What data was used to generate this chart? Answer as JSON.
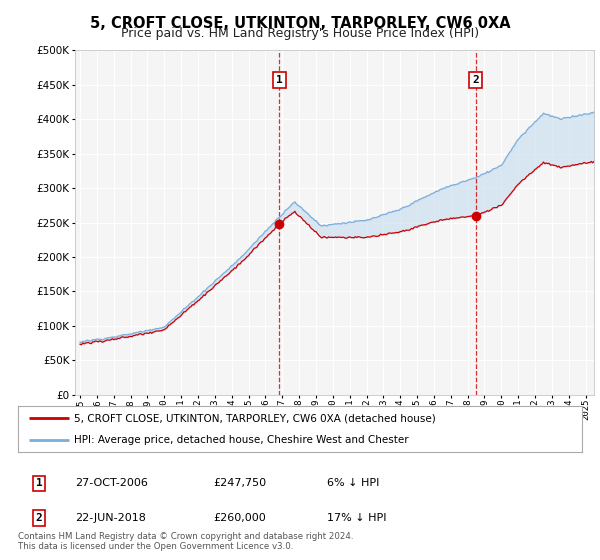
{
  "title": "5, CROFT CLOSE, UTKINTON, TARPORLEY, CW6 0XA",
  "subtitle": "Price paid vs. HM Land Registry's House Price Index (HPI)",
  "legend_line1": "5, CROFT CLOSE, UTKINTON, TARPORLEY, CW6 0XA (detached house)",
  "legend_line2": "HPI: Average price, detached house, Cheshire West and Chester",
  "annotation1_date": "27-OCT-2006",
  "annotation1_price": "£247,750",
  "annotation1_hpi": "6% ↓ HPI",
  "annotation2_date": "22-JUN-2018",
  "annotation2_price": "£260,000",
  "annotation2_hpi": "17% ↓ HPI",
  "footnote": "Contains HM Land Registry data © Crown copyright and database right 2024.\nThis data is licensed under the Open Government Licence v3.0.",
  "sale1_x": 2006.82,
  "sale1_y": 247750,
  "sale2_x": 2018.47,
  "sale2_y": 260000,
  "hpi_color": "#7aaedc",
  "price_color": "#cc0000",
  "fill_color": "#cce0f0",
  "annotation_color": "#cc0000",
  "ylim": [
    0,
    500000
  ],
  "xlim_start": 1994.7,
  "xlim_end": 2025.5,
  "background_color": "#ffffff",
  "plot_bg_color": "#f5f5f5",
  "grid_color": "#ffffff",
  "title_fontsize": 10.5,
  "subtitle_fontsize": 9
}
